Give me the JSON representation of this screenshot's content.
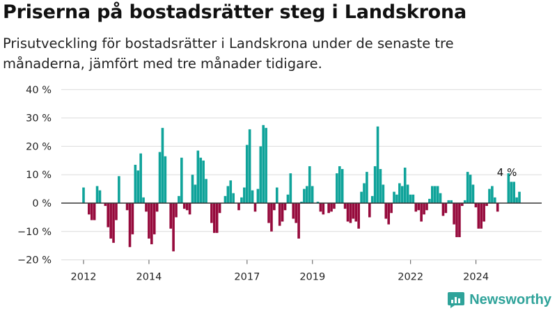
{
  "title": "Priserna på bostadsrätter steg i Landskrona",
  "subtitle": "Prisutveckling för bostadsrätter i Landskrona under de senaste tre månaderna, jämfört med tre månader tidigare.",
  "brand": "Newsworthy",
  "colors": {
    "positive": "#0fa39a",
    "negative": "#960a3c",
    "brand": "#2fa39a"
  },
  "chart_data": {
    "type": "bar",
    "xlabel": "",
    "ylabel": "",
    "ylim": [
      -20,
      40
    ],
    "y_ticks": [
      -20,
      -10,
      0,
      10,
      20,
      30,
      40
    ],
    "y_tick_labels": [
      "−20 %",
      "−10 %",
      "0 %",
      "10 %",
      "20 %",
      "30 %",
      "40 %"
    ],
    "x_tick_labels": [
      "2012",
      "2014",
      "2017",
      "2019",
      "2022",
      "2024"
    ],
    "x_tick_positions": [
      2012,
      2014,
      2017,
      2019,
      2022,
      2024
    ],
    "x_start": 2012,
    "x_step": 0.0833,
    "values": [
      5.5,
      0,
      -4,
      -6,
      -6,
      6,
      4.5,
      0,
      -1,
      -8.5,
      -12.5,
      -14,
      -6,
      9.5,
      0,
      0,
      -2.5,
      -15.5,
      -11,
      13.5,
      11.5,
      17.5,
      2,
      -3,
      -12.5,
      -14.5,
      -11,
      -3,
      18,
      26.5,
      16.5,
      0,
      -9,
      -17,
      -5,
      2.5,
      16,
      -2,
      -2.5,
      -4,
      10,
      6.5,
      18.5,
      16,
      15,
      8.5,
      0,
      -7,
      -10.5,
      -10.5,
      -3.5,
      0,
      2.5,
      6,
      8,
      3.5,
      0,
      -2.5,
      2,
      5.5,
      20.5,
      26,
      4.5,
      -3,
      5,
      20,
      27.5,
      26.5,
      -7,
      -10,
      -2.5,
      5.5,
      -8,
      -6.5,
      -2.5,
      3,
      10.5,
      -5.5,
      -7,
      -12.5,
      0.5,
      5,
      6,
      13,
      6,
      0,
      0.5,
      -3,
      -4,
      0,
      -3.5,
      -3,
      -2,
      10.5,
      13,
      12,
      -2,
      -6.5,
      -7,
      -5.5,
      -6.5,
      -9,
      4,
      7,
      11,
      -5,
      2.5,
      13,
      27,
      12,
      6.5,
      -5.5,
      -7.5,
      -3.5,
      4,
      3,
      7,
      6,
      12.5,
      6.5,
      3,
      3,
      -3,
      -2.5,
      -6.5,
      -4,
      -2.5,
      1.5,
      6,
      6,
      6,
      3.5,
      -4.5,
      -3.5,
      1,
      1,
      -7.5,
      -12,
      -12,
      -1,
      1,
      11,
      10,
      6.5,
      -1.5,
      -9,
      -9,
      -6.5,
      -1,
      5,
      6,
      2,
      -3,
      0,
      0,
      0,
      10.5,
      7.5,
      7.5,
      2,
      4
    ],
    "annotations": [
      {
        "label": "4 %",
        "x_index": 151,
        "y": 10
      }
    ]
  }
}
